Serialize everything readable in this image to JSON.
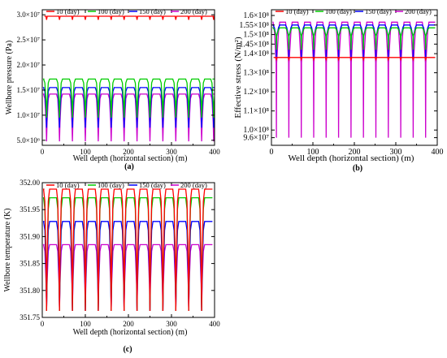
{
  "colors": {
    "d10": "#ff0000",
    "d100": "#00cc00",
    "d150": "#0000ff",
    "d200": "#cc00cc"
  },
  "chart_data": [
    {
      "panel": "(a)",
      "type": "line",
      "xlabel": "Well depth (horizontal section) (m)",
      "ylabel": "Wellbore pressure (Pa)",
      "xlim": [
        0,
        400
      ],
      "ylim": [
        4000000.0,
        31000000.0
      ],
      "xticks": [
        "0",
        "100",
        "200",
        "300",
        "400"
      ],
      "yticks": [
        {
          "v": 5000000.0,
          "label": "5.0×10⁶"
        },
        {
          "v": 10000000.0,
          "label": "1.0×10⁷"
        },
        {
          "v": 15000000.0,
          "label": "1.5×10⁷"
        },
        {
          "v": 20000000.0,
          "label": "2.0×10⁷"
        },
        {
          "v": 25000000.0,
          "label": "2.5×10⁷"
        },
        {
          "v": 30000000.0,
          "label": "3.0×10⁷"
        }
      ],
      "dips_x": [
        10,
        40,
        70,
        100,
        130,
        160,
        190,
        220,
        250,
        280,
        310,
        340,
        370,
        398
      ],
      "series": [
        {
          "name": "10 (day)",
          "color_key": "d10",
          "plateau": 29700000.0,
          "min": 29000000.0,
          "shape": "flat"
        },
        {
          "name": "100 (day)",
          "color_key": "d100",
          "plateau": 17200000.0,
          "min": 9500000.0,
          "shape": "v"
        },
        {
          "name": "150 (day)",
          "color_key": "d150",
          "plateau": 15500000.0,
          "min": 7500000.0,
          "shape": "v"
        },
        {
          "name": "200 (day)",
          "color_key": "d200",
          "plateau": 14200000.0,
          "min": 4800000.0,
          "shape": "v"
        }
      ]
    },
    {
      "panel": "(b)",
      "type": "line",
      "xlabel": "Well depth (horizontal section) (m)",
      "ylabel": "Effective stress (N/m²)",
      "xlim": [
        0,
        400
      ],
      "ylim": [
        92000000.0,
        163000000.0
      ],
      "xticks": [
        "0",
        "100",
        "200",
        "300",
        "400"
      ],
      "yticks": [
        {
          "v": 96000000.0,
          "label": "9.6×10⁷"
        },
        {
          "v": 100000000.0,
          "label": "1.0×10⁸"
        },
        {
          "v": 110000000.0,
          "label": "1.1×10⁸"
        },
        {
          "v": 120000000.0,
          "label": "1.2×10⁸"
        },
        {
          "v": 130000000.0,
          "label": "1.3×10⁸"
        },
        {
          "v": 140000000.0,
          "label": "1.4×10⁸"
        },
        {
          "v": 145000000.0,
          "label": "1.45×10⁸"
        },
        {
          "v": 150000000.0,
          "label": "1.5×10⁸"
        },
        {
          "v": 155000000.0,
          "label": "1.55×10⁸"
        },
        {
          "v": 160000000.0,
          "label": "1.6×10⁸"
        }
      ],
      "dips_x": [
        12,
        42,
        72,
        102,
        132,
        162,
        192,
        222,
        252,
        282,
        312,
        342,
        372
      ],
      "series": [
        {
          "name": "10 (day)",
          "color_key": "d10",
          "plateau": 138000000.0,
          "min": 137000000.0,
          "shape": "flat"
        },
        {
          "name": "100 (day)",
          "color_key": "d100",
          "plateau": 153500000.0,
          "min": 142000000.0,
          "shape": "u"
        },
        {
          "name": "150 (day)",
          "color_key": "d150",
          "plateau": 155000000.0,
          "min": 138000000.0,
          "shape": "u"
        },
        {
          "name": "200 (day)",
          "color_key": "d200",
          "plateau": 156500000.0,
          "min": 96000000.0,
          "shape": "u"
        }
      ]
    },
    {
      "panel": "(c)",
      "type": "line",
      "xlabel": "Well depth (horizontal section) (m)",
      "ylabel": "Wellbore temperature (K)",
      "xlim": [
        0,
        400
      ],
      "ylim": [
        351.75,
        352.0
      ],
      "xticks": [
        "0",
        "100",
        "200",
        "300",
        "400"
      ],
      "yticks": [
        {
          "v": 351.75,
          "label": "351.75"
        },
        {
          "v": 351.8,
          "label": "351.80"
        },
        {
          "v": 351.85,
          "label": "351.85"
        },
        {
          "v": 351.9,
          "label": "351.90"
        },
        {
          "v": 351.95,
          "label": "351.95"
        },
        {
          "v": 352.0,
          "label": "352.00"
        }
      ],
      "dips_x": [
        10,
        40,
        70,
        100,
        130,
        160,
        190,
        220,
        250,
        280,
        310,
        340,
        370
      ],
      "series": [
        {
          "name": "10 (day)",
          "color_key": "d10",
          "plateau": 351.988,
          "min": 351.762,
          "shape": "v"
        },
        {
          "name": "100 (day)",
          "color_key": "d100",
          "plateau": 351.972,
          "min": 351.762,
          "shape": "v"
        },
        {
          "name": "150 (day)",
          "color_key": "d150",
          "plateau": 351.928,
          "min": 351.762,
          "shape": "v"
        },
        {
          "name": "200 (day)",
          "color_key": "d200",
          "plateau": 351.885,
          "min": 351.762,
          "shape": "v"
        }
      ]
    }
  ]
}
